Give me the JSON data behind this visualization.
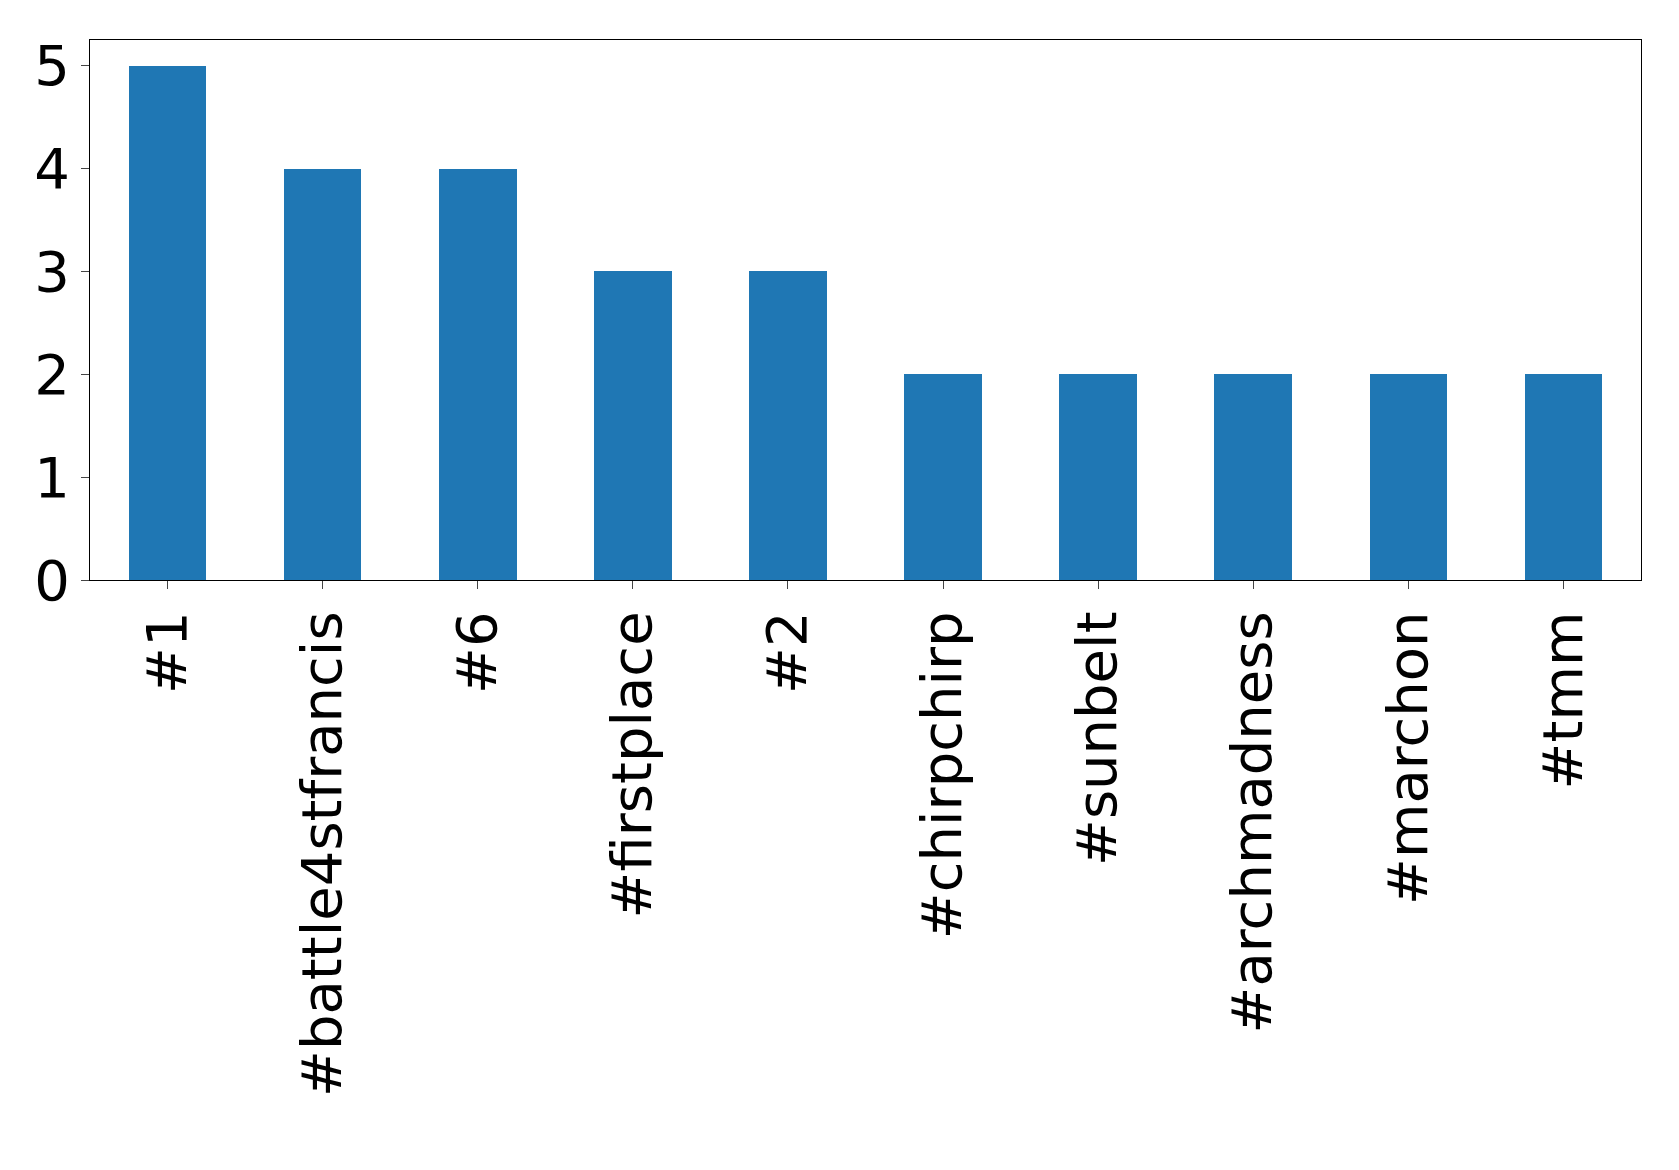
{
  "chart_data": {
    "type": "bar",
    "categories": [
      "#1",
      "#battle4stfrancis",
      "#6",
      "#firstplace",
      "#2",
      "#chirpchirp",
      "#sunbelt",
      "#archmadness",
      "#marchon",
      "#tmm"
    ],
    "values": [
      5,
      4,
      4,
      3,
      3,
      2,
      2,
      2,
      2,
      2
    ],
    "color": "#1f77b4",
    "ylim": [
      0,
      5.25
    ],
    "yticks": [
      0,
      1,
      2,
      3,
      4,
      5
    ]
  }
}
